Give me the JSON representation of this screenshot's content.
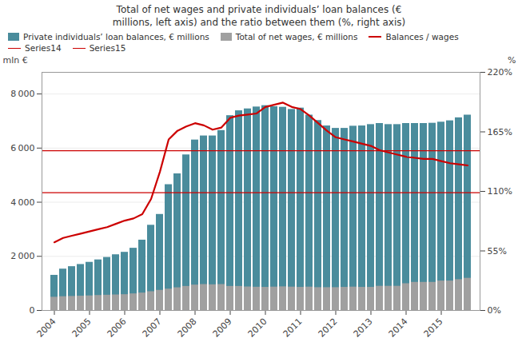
{
  "chart_data": {
    "type": "bar",
    "title": "Total of net wages and private individuals’ loan balances (€\nmillions, left axis) and the ratio between them (%, right axis)",
    "y_label": "mln €",
    "y2_label": "%",
    "categories": [
      "2004",
      null,
      null,
      null,
      "2005",
      null,
      null,
      null,
      "2006",
      null,
      null,
      null,
      "2007",
      null,
      null,
      null,
      "2008",
      null,
      null,
      null,
      "2009",
      null,
      null,
      null,
      "2010",
      null,
      null,
      null,
      "2011",
      null,
      null,
      null,
      "2012",
      null,
      null,
      null,
      "2013",
      null,
      null,
      null,
      "2014",
      null,
      null,
      null,
      "2015",
      null,
      null,
      null
    ],
    "series": [
      {
        "name": "Private individuals’ loan balances, € millions",
        "type": "bar",
        "color": "#4a8c9c",
        "values": [
          1300,
          1530,
          1620,
          1700,
          1780,
          1870,
          1960,
          2060,
          2150,
          2300,
          2600,
          3150,
          3550,
          4650,
          5050,
          5750,
          6300,
          6450,
          6450,
          6650,
          7200,
          7380,
          7450,
          7520,
          7570,
          7530,
          7510,
          7430,
          7480,
          7220,
          7020,
          6820,
          6730,
          6730,
          6810,
          6820,
          6870,
          6910,
          6870,
          6870,
          6910,
          6910,
          6910,
          6920,
          6960,
          7010,
          7120,
          7220
        ]
      },
      {
        "name": "Total of net wages, € millions",
        "type": "bar",
        "color": "#a0a0a0",
        "values": [
          490,
          510,
          520,
          530,
          540,
          555,
          565,
          575,
          585,
          615,
          645,
          695,
          745,
          790,
          840,
          890,
          940,
          960,
          950,
          960,
          890,
          890,
          870,
          860,
          855,
          865,
          875,
          865,
          855,
          865,
          845,
          845,
          845,
          855,
          865,
          855,
          855,
          895,
          895,
          895,
          990,
          1040,
          1040,
          1040,
          1090,
          1090,
          1140,
          1190
        ]
      },
      {
        "name": "Balances / wages",
        "type": "line",
        "color": "#cc0000",
        "axis": "y2",
        "values": [
          63,
          67,
          69,
          71,
          73,
          75,
          77,
          80,
          83,
          85,
          89,
          103,
          128,
          158,
          166,
          170,
          173,
          171,
          167,
          169,
          178,
          180,
          181,
          182,
          188,
          190,
          192,
          188,
          186,
          180,
          173,
          166,
          160,
          158,
          156,
          154,
          152,
          148,
          146,
          144,
          142,
          141,
          140,
          140,
          138,
          136,
          135,
          134
        ]
      },
      {
        "name": "Series14",
        "type": "hline",
        "color": "#cc0000",
        "value": 5900
      },
      {
        "name": "Series15",
        "type": "hline",
        "color": "#cc0000",
        "value": 4350
      }
    ],
    "stacked": false,
    "ylim": [
      0,
      8800
    ],
    "yticks": [
      0,
      {
        "value": 2000,
        "label": "2 000"
      },
      {
        "value": 4000,
        "label": "4 000"
      },
      {
        "value": 6000,
        "label": "6 000"
      },
      {
        "value": 8000,
        "label": "8 000"
      }
    ],
    "y2lim": [
      0,
      220
    ],
    "y2ticks": [
      {
        "value": 0,
        "label": "0%"
      },
      {
        "value": 55,
        "label": "55%"
      },
      {
        "value": 110,
        "label": "110%"
      },
      {
        "value": 165,
        "label": "165%"
      },
      {
        "value": 220,
        "label": "220%"
      }
    ],
    "grid": true,
    "legend": "upper left"
  }
}
